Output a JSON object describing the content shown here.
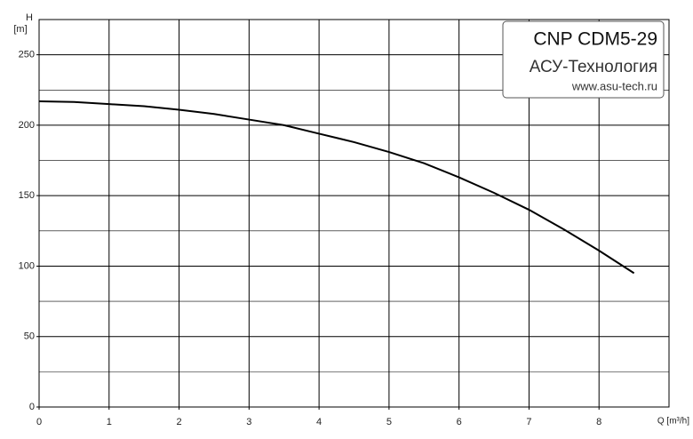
{
  "chart_data": {
    "type": "line",
    "x_label": "Q [m³/h]",
    "y_label": "H",
    "y_unit": "[m]",
    "annotations": [
      "CNP CDM5-29",
      "АСУ-Технология",
      "www.asu-tech.ru"
    ],
    "x": [
      0,
      0.5,
      1,
      1.5,
      2,
      2.5,
      3,
      3.5,
      4,
      4.5,
      5,
      5.5,
      6,
      6.5,
      7,
      7.5,
      8,
      8.5
    ],
    "series": [
      {
        "name": "H",
        "color": "#000000",
        "values": [
          217,
          216.5,
          215,
          213.5,
          211,
          208,
          204,
          200,
          194,
          188,
          181,
          173,
          163,
          152,
          140,
          126,
          111,
          95
        ]
      }
    ],
    "xlim": [
      0,
      9
    ],
    "xticks": [
      0,
      1,
      2,
      3,
      4,
      5,
      6,
      7,
      8
    ],
    "ylim": [
      0,
      275
    ],
    "yticks": [
      0,
      50,
      100,
      150,
      200,
      250
    ],
    "yminor": [
      25,
      75,
      125,
      175,
      225,
      275
    ],
    "grid": true
  }
}
